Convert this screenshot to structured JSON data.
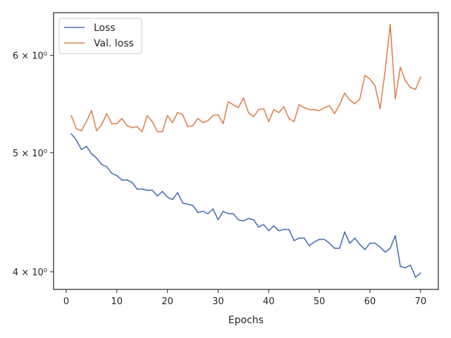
{
  "chart_data": {
    "type": "line",
    "title": "",
    "xlabel": "Epochs",
    "ylabel": "",
    "yscale": "log",
    "xlim": [
      -2.5,
      73.5
    ],
    "ylim": [
      3.87,
      6.5
    ],
    "x_ticks": [
      0,
      10,
      20,
      30,
      40,
      50,
      60,
      70
    ],
    "y_ticks": [
      {
        "value": 4,
        "label": "4 × 10⁰"
      },
      {
        "value": 5,
        "label": "5 × 10⁰"
      },
      {
        "value": 6,
        "label": "6 × 10⁰"
      }
    ],
    "grid": false,
    "legend_position": "top-left",
    "x": [
      1,
      2,
      3,
      4,
      5,
      6,
      7,
      8,
      9,
      10,
      11,
      12,
      13,
      14,
      15,
      16,
      17,
      18,
      19,
      20,
      21,
      22,
      23,
      24,
      25,
      26,
      27,
      28,
      29,
      30,
      31,
      32,
      33,
      34,
      35,
      36,
      37,
      38,
      39,
      40,
      41,
      42,
      43,
      44,
      45,
      46,
      47,
      48,
      49,
      50,
      51,
      52,
      53,
      54,
      55,
      56,
      57,
      58,
      59,
      60,
      61,
      62,
      63,
      64,
      65,
      66,
      67,
      68,
      69,
      70
    ],
    "series": [
      {
        "name": "Loss",
        "color": "#4c72b0",
        "values": [
          5.18,
          5.12,
          5.03,
          5.06,
          4.99,
          4.95,
          4.89,
          4.87,
          4.81,
          4.79,
          4.75,
          4.75,
          4.73,
          4.67,
          4.67,
          4.66,
          4.66,
          4.61,
          4.65,
          4.6,
          4.58,
          4.64,
          4.55,
          4.54,
          4.53,
          4.47,
          4.48,
          4.46,
          4.5,
          4.41,
          4.48,
          4.46,
          4.46,
          4.41,
          4.4,
          4.42,
          4.41,
          4.35,
          4.37,
          4.32,
          4.36,
          4.32,
          4.33,
          4.33,
          4.24,
          4.26,
          4.26,
          4.2,
          4.23,
          4.25,
          4.25,
          4.22,
          4.18,
          4.18,
          4.31,
          4.22,
          4.26,
          4.21,
          4.17,
          4.22,
          4.22,
          4.19,
          4.15,
          4.18,
          4.28,
          4.04,
          4.03,
          4.05,
          3.96,
          3.99
        ]
      },
      {
        "name": "Val. loss",
        "color": "#dd8452",
        "values": [
          5.36,
          5.23,
          5.21,
          5.3,
          5.41,
          5.21,
          5.27,
          5.38,
          5.28,
          5.28,
          5.33,
          5.26,
          5.24,
          5.25,
          5.2,
          5.36,
          5.3,
          5.2,
          5.2,
          5.36,
          5.29,
          5.39,
          5.37,
          5.25,
          5.26,
          5.33,
          5.29,
          5.31,
          5.36,
          5.37,
          5.28,
          5.5,
          5.47,
          5.44,
          5.54,
          5.39,
          5.35,
          5.42,
          5.43,
          5.3,
          5.42,
          5.39,
          5.45,
          5.33,
          5.3,
          5.47,
          5.44,
          5.42,
          5.42,
          5.41,
          5.44,
          5.46,
          5.38,
          5.47,
          5.59,
          5.52,
          5.48,
          5.53,
          5.78,
          5.74,
          5.67,
          5.43,
          5.83,
          6.36,
          5.53,
          5.87,
          5.72,
          5.65,
          5.63,
          5.76
        ]
      }
    ]
  }
}
